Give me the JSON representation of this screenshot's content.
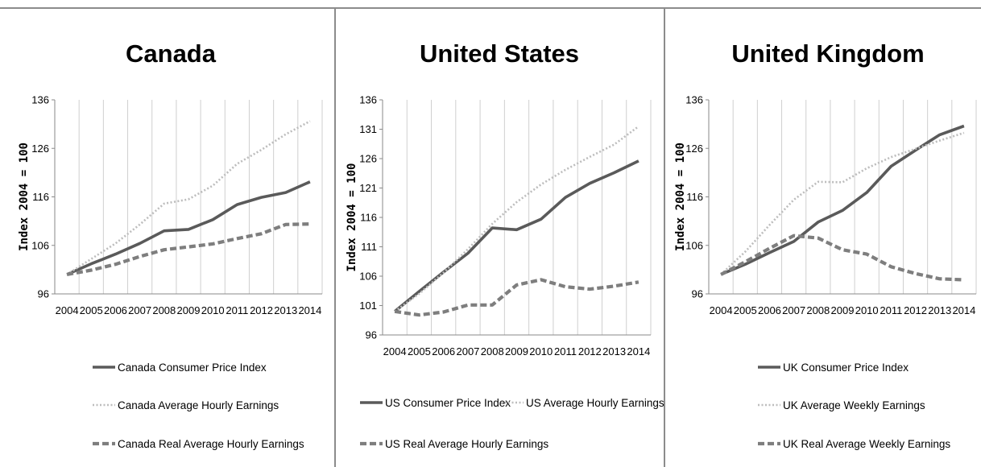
{
  "chart_data": [
    {
      "type": "line",
      "title": "Canada",
      "ylabel": "Index 2004 = 100",
      "ylim": [
        96,
        136
      ],
      "yticks": [
        96,
        106,
        116,
        126,
        136
      ],
      "x": [
        "2004",
        "2005",
        "2006",
        "2007",
        "2008",
        "2009",
        "2010",
        "2011",
        "2012",
        "2013",
        "2014"
      ],
      "grid": "vertical",
      "legend": "bottom",
      "series": [
        {
          "name": "Canada Consumer Price Index",
          "style": "solid",
          "values": [
            100.0,
            102.2,
            104.2,
            106.4,
            109.0,
            109.3,
            111.3,
            114.4,
            115.9,
            116.9,
            119.1
          ]
        },
        {
          "name": "Canada Average Hourly Earnings",
          "style": "dotted",
          "values": [
            100.0,
            103.2,
            106.4,
            110.3,
            114.6,
            115.5,
            118.3,
            122.8,
            125.7,
            128.9,
            131.6
          ]
        },
        {
          "name": "Canada Real Average Hourly Earnings",
          "style": "dashed",
          "values": [
            100.0,
            100.9,
            102.1,
            103.7,
            105.1,
            105.7,
            106.3,
            107.4,
            108.4,
            110.3,
            110.4
          ]
        }
      ]
    },
    {
      "type": "line",
      "title": "United States",
      "ylabel": "Index 2004 = 100",
      "ylim": [
        96,
        136
      ],
      "yticks": [
        96,
        101,
        106,
        111,
        116,
        121,
        126,
        131,
        136
      ],
      "x": [
        "2004",
        "2005",
        "2006",
        "2007",
        "2008",
        "2009",
        "2010",
        "2011",
        "2012",
        "2013",
        "2014"
      ],
      "grid": "vertical",
      "legend": "bottom",
      "series": [
        {
          "name": "US Consumer Price Index",
          "style": "solid",
          "values": [
            100.0,
            103.4,
            106.7,
            109.9,
            114.2,
            113.9,
            115.7,
            119.4,
            121.8,
            123.6,
            125.6
          ]
        },
        {
          "name": "US Average Hourly Earnings",
          "style": "dotted",
          "values": [
            100.0,
            103.0,
            106.6,
            110.6,
            114.9,
            118.6,
            121.6,
            124.1,
            126.3,
            128.4,
            131.5
          ]
        },
        {
          "name": "US Real Average Hourly Earnings",
          "style": "dashed",
          "values": [
            100.0,
            99.4,
            99.9,
            101.1,
            101.1,
            104.5,
            105.4,
            104.2,
            103.8,
            104.3,
            105.0
          ]
        }
      ]
    },
    {
      "type": "line",
      "title": "United Kingdom",
      "ylabel": "Index 2004 = 100",
      "ylim": [
        96,
        136
      ],
      "yticks": [
        96,
        106,
        116,
        126,
        136
      ],
      "x": [
        "2004",
        "2005",
        "2006",
        "2007",
        "2008",
        "2009",
        "2010",
        "2011",
        "2012",
        "2013",
        "2014"
      ],
      "grid": "vertical",
      "legend": "bottom",
      "series": [
        {
          "name": "UK Consumer Price Index",
          "style": "solid",
          "values": [
            100.0,
            102.1,
            104.5,
            106.8,
            110.8,
            113.2,
            116.9,
            122.3,
            125.6,
            128.8,
            130.6
          ]
        },
        {
          "name": "UK Average Weekly Earnings",
          "style": "dotted",
          "values": [
            100.0,
            104.7,
            110.2,
            115.4,
            119.1,
            119.0,
            121.9,
            124.2,
            125.9,
            127.6,
            129.2
          ]
        },
        {
          "name": "UK Real Average Weekly Earnings",
          "style": "dashed",
          "values": [
            100.0,
            102.6,
            105.4,
            108.0,
            107.5,
            105.1,
            104.2,
            101.6,
            100.2,
            99.1,
            98.9
          ]
        }
      ]
    }
  ]
}
